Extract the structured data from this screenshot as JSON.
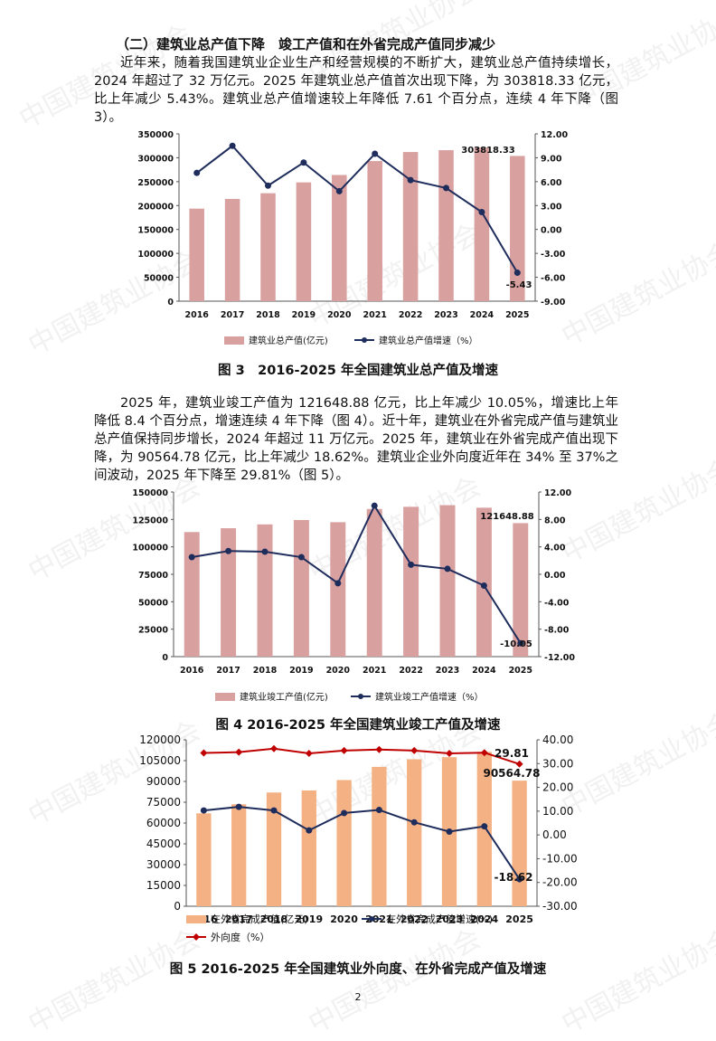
{
  "watermark": "中国建筑业协会",
  "section_heading": "（二）建筑业总产值下降　竣工产值和在外省完成产值同步减少",
  "paragraph1": "近年来，随着我国建筑业企业生产和经营规模的不断扩大，建筑业总产值持续增长，2024 年超过了 32 万亿元。2025 年建筑业总产值首次出现下降，为 303818.33 亿元，比上年减少 5.43%。建筑业总产值增速较上年降低 7.61 个百分点，连续 4 年下降（图 3）。",
  "paragraph2": "2025 年，建筑业竣工产值为 121648.88 亿元，比上年减少 10.05%，增速比上年降低 8.4 个百分点，增速连续 4 年下降（图 4）。近十年，建筑业在外省完成产值与建筑业总产值保持同步增长，2024 年超过 11 万亿元。2025 年，建筑业在外省完成产值出现下降，为 90564.78 亿元，比上年减少 18.62%。建筑业企业外向度近年在 34% 至 37%之间波动，2025 年下降至 29.81%（图 5）。",
  "caption3": "图 3　2016-2025 年全国建筑业总产值及增速",
  "caption4": "图 4  2016-2025 年全国建筑业竣工产值及增速",
  "caption5": "图 5  2016-2025 年全国建筑业外向度、在外省完成产值及增速",
  "page_number": "2",
  "chart_data": [
    {
      "type": "bar",
      "categories": [
        "2016",
        "2017",
        "2018",
        "2019",
        "2020",
        "2021",
        "2022",
        "2023",
        "2024",
        "2025"
      ],
      "series": [
        {
          "name": "建筑业总产值(亿元)",
          "type": "bar",
          "axis": "left",
          "color": "#d9a0a0",
          "values": [
            193567,
            213944,
            225817,
            248446,
            263947,
            293079,
            311980,
            315912,
            321285,
            303818.33
          ]
        },
        {
          "name": "建筑业总产值增速（%）",
          "type": "line",
          "axis": "right",
          "color": "#1f2d5c",
          "values": [
            7.1,
            10.5,
            5.5,
            8.4,
            4.8,
            9.5,
            6.2,
            5.2,
            2.18,
            -5.43
          ]
        }
      ],
      "ylim_left": [
        0,
        350000
      ],
      "yticks_left": [
        "0",
        "50000",
        "100000",
        "150000",
        "200000",
        "250000",
        "300000",
        "350000"
      ],
      "ylim_right": [
        -9,
        12
      ],
      "yticks_right": [
        "-9.00",
        "-6.00",
        "-3.00",
        "0.00",
        "3.00",
        "6.00",
        "9.00",
        "12.00"
      ],
      "data_labels": [
        {
          "text": "303818.33"
        },
        {
          "text": "-5.43"
        }
      ],
      "legend": "bottom"
    },
    {
      "type": "bar",
      "categories": [
        "2016",
        "2017",
        "2018",
        "2019",
        "2020",
        "2021",
        "2022",
        "2023",
        "2024",
        "2025"
      ],
      "series": [
        {
          "name": "建筑业竣工产值(亿元)",
          "type": "bar",
          "axis": "left",
          "color": "#d9a0a0",
          "values": [
            113500,
            117000,
            120500,
            124500,
            122500,
            134500,
            136500,
            138000,
            135700,
            121648.88
          ]
        },
        {
          "name": "建筑业竣工产值增速（%）",
          "type": "line",
          "axis": "right",
          "color": "#1f2d5c",
          "values": [
            2.5,
            3.4,
            3.3,
            2.5,
            -1.3,
            10.0,
            1.4,
            0.8,
            -1.65,
            -10.05
          ]
        }
      ],
      "ylim_left": [
        0,
        150000
      ],
      "yticks_left": [
        "0",
        "25000",
        "50000",
        "75000",
        "100000",
        "125000",
        "150000"
      ],
      "ylim_right": [
        -12,
        12
      ],
      "yticks_right": [
        "-12.00",
        "-8.00",
        "-4.00",
        "0.00",
        "4.00",
        "8.00",
        "12.00"
      ],
      "data_labels": [
        {
          "text": "121648.88"
        },
        {
          "text": "-10.05"
        }
      ],
      "legend": "bottom"
    },
    {
      "type": "bar",
      "categories": [
        "2016",
        "2017",
        "2018",
        "2019",
        "2020",
        "2021",
        "2022",
        "2023",
        "2024",
        "2025"
      ],
      "series": [
        {
          "name": "在外省完成产值(亿元)",
          "type": "bar",
          "axis": "left",
          "color": "#f4b183",
          "values": [
            67000,
            73500,
            82000,
            83500,
            91000,
            100500,
            106000,
            107500,
            111300,
            90564.78
          ]
        },
        {
          "name": "在外省完成产值增速(%)",
          "type": "line",
          "axis": "right",
          "color": "#1f2d5c",
          "values": [
            10.3,
            11.8,
            10.3,
            1.9,
            9.2,
            10.5,
            5.3,
            1.4,
            3.6,
            -18.62
          ]
        },
        {
          "name": "外向度（%）",
          "type": "line",
          "axis": "right",
          "color": "#c00000",
          "values": [
            34.5,
            34.8,
            36.3,
            34.3,
            35.5,
            35.9,
            35.5,
            34.3,
            34.6,
            29.81
          ]
        }
      ],
      "ylim_left": [
        0,
        120000
      ],
      "yticks_left": [
        "0",
        "15000",
        "30000",
        "45000",
        "60000",
        "75000",
        "90000",
        "105000",
        "120000"
      ],
      "ylim_right": [
        -30,
        40
      ],
      "yticks_right": [
        "-30.00",
        "-20.00",
        "-10.00",
        "0.00",
        "10.00",
        "20.00",
        "30.00",
        "40.00"
      ],
      "data_labels": [
        {
          "text": "29.81"
        },
        {
          "text": "90564.78"
        },
        {
          "text": "-18.62"
        }
      ],
      "legend": "bottom"
    }
  ]
}
